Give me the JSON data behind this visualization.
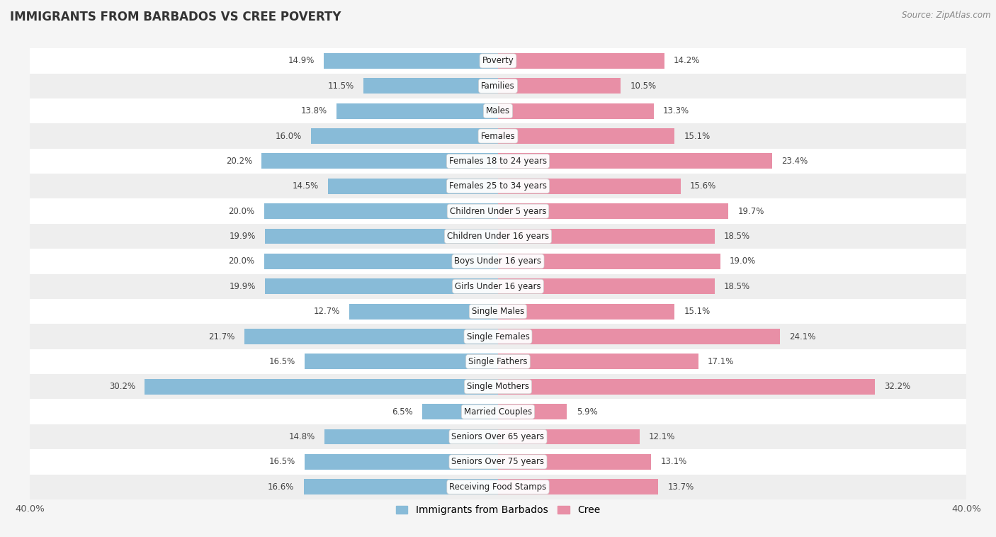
{
  "title": "IMMIGRANTS FROM BARBADOS VS CREE POVERTY",
  "source": "Source: ZipAtlas.com",
  "categories": [
    "Poverty",
    "Families",
    "Males",
    "Females",
    "Females 18 to 24 years",
    "Females 25 to 34 years",
    "Children Under 5 years",
    "Children Under 16 years",
    "Boys Under 16 years",
    "Girls Under 16 years",
    "Single Males",
    "Single Females",
    "Single Fathers",
    "Single Mothers",
    "Married Couples",
    "Seniors Over 65 years",
    "Seniors Over 75 years",
    "Receiving Food Stamps"
  ],
  "barbados_values": [
    14.9,
    11.5,
    13.8,
    16.0,
    20.2,
    14.5,
    20.0,
    19.9,
    20.0,
    19.9,
    12.7,
    21.7,
    16.5,
    30.2,
    6.5,
    14.8,
    16.5,
    16.6
  ],
  "cree_values": [
    14.2,
    10.5,
    13.3,
    15.1,
    23.4,
    15.6,
    19.7,
    18.5,
    19.0,
    18.5,
    15.1,
    24.1,
    17.1,
    32.2,
    5.9,
    12.1,
    13.1,
    13.7
  ],
  "barbados_color": "#88bbd8",
  "cree_color": "#e88fa6",
  "row_colors": [
    "#ffffff",
    "#eeeeee"
  ],
  "axis_limit": 40.0,
  "legend_labels": [
    "Immigrants from Barbados",
    "Cree"
  ],
  "bar_height": 0.62,
  "label_fontsize": 8.5,
  "cat_fontsize": 8.5,
  "title_fontsize": 12,
  "source_fontsize": 8.5
}
